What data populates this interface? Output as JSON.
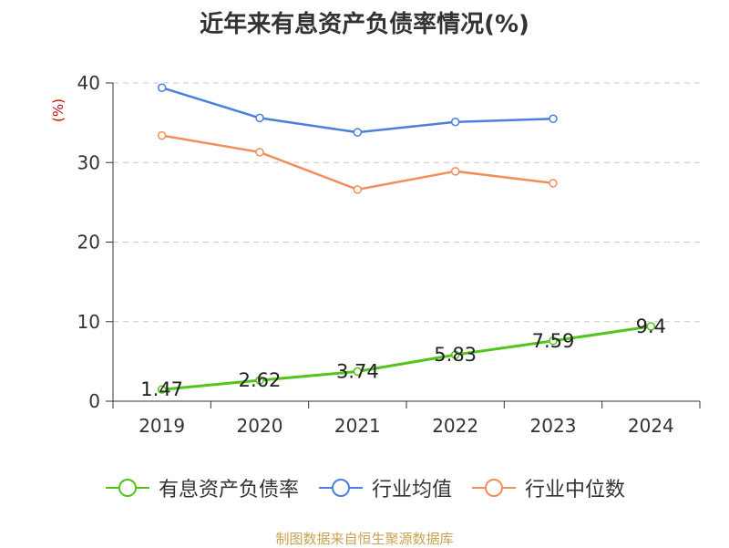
{
  "chart_data": {
    "type": "line",
    "title": "近年来有息资产负债率情况(%)",
    "ylabel": "(%)",
    "xlabel": "",
    "categories": [
      "2019",
      "2020",
      "2021",
      "2022",
      "2023",
      "2024"
    ],
    "ylim": [
      0,
      40
    ],
    "yticks": [
      0,
      10,
      20,
      30,
      40
    ],
    "grid": true,
    "legend_position": "bottom",
    "series": [
      {
        "name": "有息资产负债率",
        "color": "#52c41a",
        "values": [
          1.47,
          2.62,
          3.74,
          5.83,
          7.59,
          9.4
        ],
        "labels": [
          "1.47",
          "2.62",
          "3.74",
          "5.83",
          "7.59",
          "9.4"
        ]
      },
      {
        "name": "行业均值",
        "color": "#4a7fdc",
        "values": [
          39.4,
          35.6,
          33.8,
          35.1,
          35.5,
          null
        ]
      },
      {
        "name": "行业中位数",
        "color": "#f28e5c",
        "values": [
          33.4,
          31.3,
          26.6,
          28.9,
          27.4,
          null
        ]
      }
    ]
  },
  "source": "制图数据来自恒生聚源数据库"
}
